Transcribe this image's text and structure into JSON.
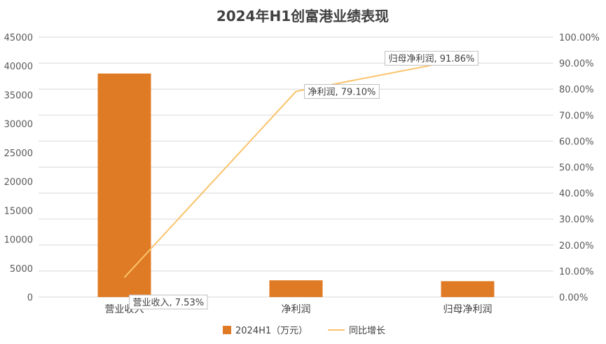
{
  "chart_data": {
    "type": "bar",
    "title": "2024年H1创富港业绩表现",
    "categories": [
      "营业收入",
      "净利润",
      "归母净利润"
    ],
    "series": [
      {
        "name": "2024H1（万元）",
        "type": "bar",
        "axis": "left",
        "color": "#E07B25",
        "values": [
          38700,
          2900,
          2750
        ]
      },
      {
        "name": "同比增长",
        "type": "line",
        "axis": "right",
        "color": "#FAC36B",
        "values": [
          7.53,
          79.1,
          91.86
        ],
        "data_labels": [
          "营业收入, 7.53%",
          "净利润, 79.10%",
          "归母净利润, 91.86%"
        ]
      }
    ],
    "y_left": {
      "range": [
        0,
        45000
      ],
      "ticks": [
        "0",
        "5000",
        "10000",
        "15000",
        "20000",
        "25000",
        "30000",
        "35000",
        "40000",
        "45000"
      ]
    },
    "y_right": {
      "range": [
        0,
        100
      ],
      "ticks": [
        "0.00%",
        "10.00%",
        "20.00%",
        "30.00%",
        "40.00%",
        "50.00%",
        "60.00%",
        "70.00%",
        "80.00%",
        "90.00%",
        "100.00%"
      ]
    },
    "grid": true,
    "legend_position": "bottom"
  }
}
